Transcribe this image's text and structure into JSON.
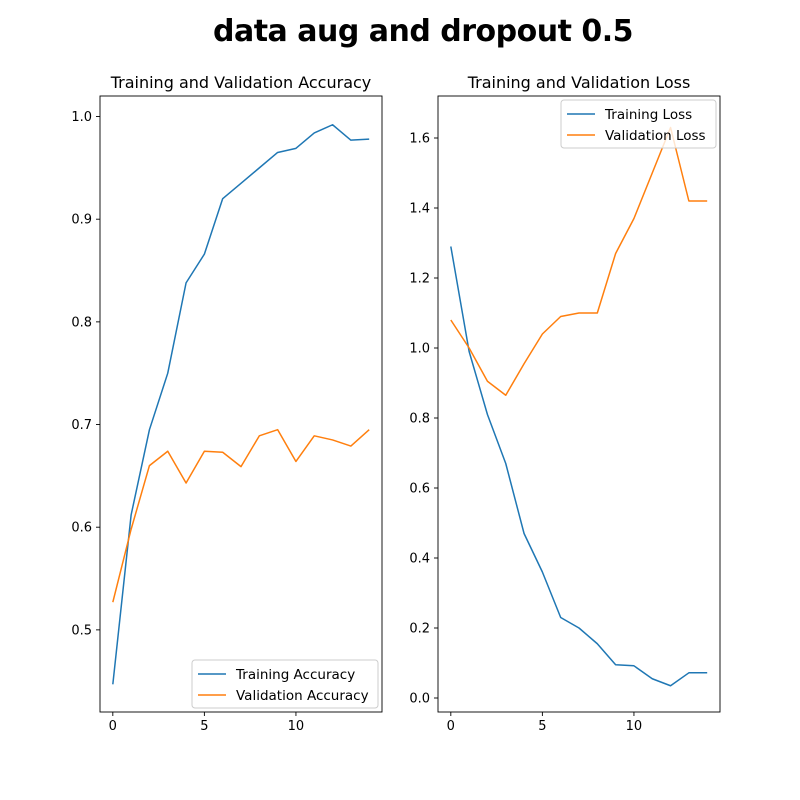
{
  "figure_title": "data aug and dropout 0.5",
  "chart_data": [
    {
      "type": "line",
      "title": "Training and Validation Accuracy",
      "xlabel": "",
      "ylabel": "",
      "xlim": [
        -0.7,
        14.7
      ],
      "ylim": [
        0.42,
        1.02
      ],
      "xticks": [
        0,
        5,
        10
      ],
      "yticks": [
        0.5,
        0.6,
        0.7,
        0.8,
        0.9,
        1.0
      ],
      "legend_position": "lower-right",
      "grid": false,
      "x": [
        0,
        1,
        2,
        3,
        4,
        5,
        6,
        7,
        8,
        9,
        10,
        11,
        12,
        13,
        14
      ],
      "series": [
        {
          "name": "Training Accuracy",
          "color": "#1f77b4",
          "values": [
            0.447,
            0.612,
            0.695,
            0.75,
            0.838,
            0.866,
            0.92,
            0.935,
            0.95,
            0.965,
            0.969,
            0.984,
            0.992,
            0.977,
            0.978
          ]
        },
        {
          "name": "Validation Accuracy",
          "color": "#ff7f0e",
          "values": [
            0.527,
            0.598,
            0.66,
            0.674,
            0.643,
            0.674,
            0.673,
            0.659,
            0.689,
            0.695,
            0.664,
            0.689,
            0.685,
            0.679,
            0.695
          ]
        }
      ]
    },
    {
      "type": "line",
      "title": "Training and Validation Loss",
      "xlabel": "",
      "ylabel": "",
      "xlim": [
        -0.7,
        14.7
      ],
      "ylim": [
        -0.04,
        1.72
      ],
      "xticks": [
        0,
        5,
        10
      ],
      "yticks": [
        0.0,
        0.2,
        0.4,
        0.6,
        0.8,
        1.0,
        1.2,
        1.4,
        1.6
      ],
      "legend_position": "upper-right",
      "grid": false,
      "x": [
        0,
        1,
        2,
        3,
        4,
        5,
        6,
        7,
        8,
        9,
        10,
        11,
        12,
        13,
        14
      ],
      "series": [
        {
          "name": "Training Loss",
          "color": "#1f77b4",
          "values": [
            1.29,
            0.99,
            0.81,
            0.67,
            0.47,
            0.36,
            0.23,
            0.2,
            0.155,
            0.095,
            0.092,
            0.055,
            0.035,
            0.072,
            0.072
          ]
        },
        {
          "name": "Validation Loss",
          "color": "#ff7f0e",
          "values": [
            1.08,
            1.0,
            0.905,
            0.865,
            0.955,
            1.04,
            1.09,
            1.1,
            1.1,
            1.27,
            1.37,
            1.5,
            1.63,
            1.42,
            1.42
          ]
        }
      ]
    }
  ]
}
